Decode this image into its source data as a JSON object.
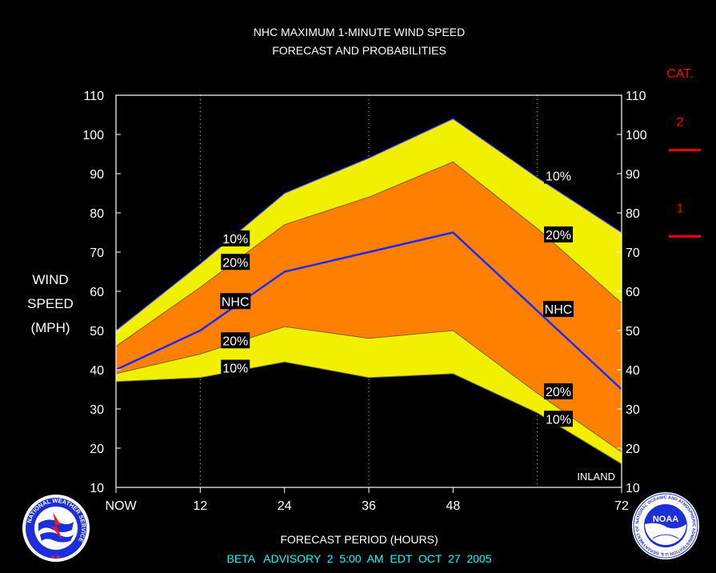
{
  "chart_data": {
    "type": "area",
    "title": "NHC MAXIMUM 1-MINUTE WIND SPEED",
    "subtitle": "FORECAST AND PROBABILITIES",
    "xlabel": "FORECAST PERIOD (HOURS)",
    "ylabel": [
      "WIND",
      "SPEED",
      "(MPH)"
    ],
    "xlim": [
      0,
      72
    ],
    "ylim": [
      10,
      110
    ],
    "x_ticks": [
      {
        "value": 0,
        "label": "NOW"
      },
      {
        "value": 12,
        "label": "12"
      },
      {
        "value": 24,
        "label": "24"
      },
      {
        "value": 36,
        "label": "36"
      },
      {
        "value": 48,
        "label": "48"
      },
      {
        "value": 72,
        "label": "72"
      }
    ],
    "y_ticks": [
      10,
      20,
      30,
      40,
      50,
      60,
      70,
      80,
      90,
      100,
      110
    ],
    "x": [
      0,
      12,
      24,
      36,
      48,
      60,
      72
    ],
    "series": [
      {
        "name": "10%",
        "role": "upper_10",
        "values": [
          50,
          67,
          85,
          94,
          104,
          89,
          75
        ]
      },
      {
        "name": "20%",
        "role": "upper_20",
        "values": [
          46,
          61,
          77,
          84,
          93,
          76,
          57
        ]
      },
      {
        "name": "NHC",
        "role": "nhc",
        "values": [
          40,
          50,
          65,
          70,
          75,
          55,
          35
        ]
      },
      {
        "name": "20%",
        "role": "lower_20",
        "values": [
          39,
          44,
          51,
          48,
          50,
          34,
          19
        ]
      },
      {
        "name": "10%",
        "role": "lower_10",
        "values": [
          37,
          38,
          42,
          38,
          39,
          29,
          16
        ]
      }
    ],
    "band_labels": [
      {
        "text": "10%",
        "x": 17,
        "y": 73.5
      },
      {
        "text": "20%",
        "x": 17,
        "y": 67.5
      },
      {
        "text": "NHC",
        "x": 17,
        "y": 57.5
      },
      {
        "text": "20%",
        "x": 17,
        "y": 47.5
      },
      {
        "text": "10%",
        "x": 17,
        "y": 40.5
      },
      {
        "text": "10%",
        "x": 63,
        "y": 89.5
      },
      {
        "text": "20%",
        "x": 63,
        "y": 74.5
      },
      {
        "text": "NHC",
        "x": 63,
        "y": 55.5
      },
      {
        "text": "20%",
        "x": 63,
        "y": 34.5
      },
      {
        "text": "10%",
        "x": 63,
        "y": 27.5
      }
    ],
    "annotation": "INLAND",
    "category_label": "CAT.",
    "categories": [
      {
        "label": "2",
        "threshold_mph": 96
      },
      {
        "label": "1",
        "threshold_mph": 74
      }
    ],
    "grid": "vertical dotted at 12, 36, 60",
    "colors": {
      "outer_band": "#f0f000",
      "inner_band": "#ff8000",
      "nhc_line": "#1a2aff",
      "category": "#ff0000",
      "text": "#ffffff",
      "footer": "#00ffff"
    }
  },
  "footer": {
    "advisory": "BETA   ADVISORY  2  5:00  AM  EDT  OCT  27  2005"
  },
  "logos": {
    "left": "NATIONAL WEATHER SERVICE",
    "right_center": "NOAA",
    "right_ring": "NATIONAL OCEANIC AND ATMOSPHERIC ADMINISTRATION U.S. DEPARTMENT OF COMMERCE"
  }
}
